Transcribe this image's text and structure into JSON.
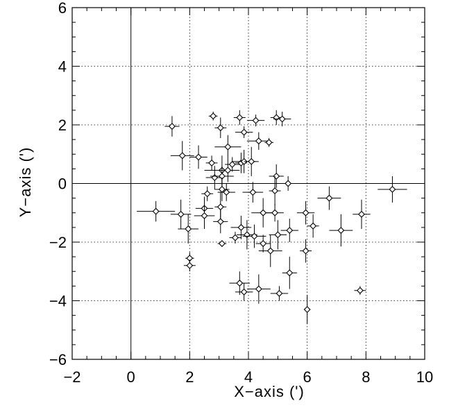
{
  "chart_data": {
    "type": "scatter",
    "title": "",
    "xlabel": "X−axis (')",
    "ylabel": "Y−axis (')",
    "xlim": [
      -2,
      10
    ],
    "ylim": [
      -6,
      6
    ],
    "xticks": [
      -2,
      0,
      2,
      4,
      6,
      8,
      10
    ],
    "yticks": [
      -6,
      -4,
      -2,
      0,
      2,
      4,
      6
    ],
    "xtick_labels": [
      "−2",
      "0",
      "2",
      "4",
      "6",
      "8",
      "10"
    ],
    "ytick_labels": [
      "−6",
      "−4",
      "−2",
      "0",
      "2",
      "4",
      "6"
    ],
    "grid": "dotted",
    "zero_lines": true,
    "marker": "diamond",
    "points": [
      {
        "x": 2.8,
        "y": 2.3,
        "xerr": 0.15,
        "yerr": 0.15
      },
      {
        "x": 3.7,
        "y": 2.25,
        "xerr": 0.2,
        "yerr": 0.25
      },
      {
        "x": 4.25,
        "y": 2.15,
        "xerr": 0.3,
        "yerr": 0.2
      },
      {
        "x": 4.95,
        "y": 2.25,
        "xerr": 0.2,
        "yerr": 0.25
      },
      {
        "x": 5.15,
        "y": 2.2,
        "xerr": 0.3,
        "yerr": 0.25
      },
      {
        "x": 1.4,
        "y": 1.95,
        "xerr": 0.25,
        "yerr": 0.35
      },
      {
        "x": 3.05,
        "y": 1.9,
        "xerr": 0.2,
        "yerr": 0.35
      },
      {
        "x": 3.85,
        "y": 1.75,
        "xerr": 0.3,
        "yerr": 0.2
      },
      {
        "x": 4.35,
        "y": 1.45,
        "xerr": 0.4,
        "yerr": 0.3
      },
      {
        "x": 4.7,
        "y": 1.4,
        "xerr": 0.15,
        "yerr": 0.15
      },
      {
        "x": 3.3,
        "y": 1.25,
        "xerr": 0.45,
        "yerr": 0.4
      },
      {
        "x": 1.75,
        "y": 0.95,
        "xerr": 0.4,
        "yerr": 0.5
      },
      {
        "x": 2.3,
        "y": 0.9,
        "xerr": 0.3,
        "yerr": 0.4
      },
      {
        "x": 2.75,
        "y": 0.7,
        "xerr": 0.2,
        "yerr": 0.25
      },
      {
        "x": 3.1,
        "y": 0.45,
        "xerr": 0.6,
        "yerr": 0.5
      },
      {
        "x": 3.3,
        "y": 0.45,
        "xerr": 0.35,
        "yerr": 0.4
      },
      {
        "x": 3.45,
        "y": 0.65,
        "xerr": 0.25,
        "yerr": 0.25
      },
      {
        "x": 3.75,
        "y": 0.7,
        "xerr": 0.2,
        "yerr": 0.35
      },
      {
        "x": 3.85,
        "y": 0.75,
        "xerr": 0.4,
        "yerr": 0.4
      },
      {
        "x": 4.1,
        "y": 0.75,
        "xerr": 0.25,
        "yerr": 0.5
      },
      {
        "x": 2.85,
        "y": 0.2,
        "xerr": 0.3,
        "yerr": 0.4
      },
      {
        "x": 3.1,
        "y": 0.25,
        "xerr": 0.4,
        "yerr": 0.35
      },
      {
        "x": 4.95,
        "y": 0.25,
        "xerr": 0.25,
        "yerr": 0.4
      },
      {
        "x": 5.35,
        "y": 0.0,
        "xerr": 0.15,
        "yerr": 0.25
      },
      {
        "x": 2.6,
        "y": -0.35,
        "xerr": 0.2,
        "yerr": 0.25
      },
      {
        "x": 3.1,
        "y": -0.2,
        "xerr": 0.25,
        "yerr": 0.4
      },
      {
        "x": 3.25,
        "y": -0.3,
        "xerr": 0.3,
        "yerr": 0.3
      },
      {
        "x": 4.15,
        "y": -0.3,
        "xerr": 0.35,
        "yerr": 0.35
      },
      {
        "x": 4.9,
        "y": -0.25,
        "xerr": 0.2,
        "yerr": 0.5
      },
      {
        "x": 0.85,
        "y": -0.95,
        "xerr": 0.65,
        "yerr": 0.35
      },
      {
        "x": 1.7,
        "y": -1.05,
        "xerr": 0.35,
        "yerr": 0.5
      },
      {
        "x": 2.5,
        "y": -0.85,
        "xerr": 0.3,
        "yerr": 0.4
      },
      {
        "x": 2.5,
        "y": -1.1,
        "xerr": 0.35,
        "yerr": 0.45
      },
      {
        "x": 3.05,
        "y": -0.8,
        "xerr": 0.2,
        "yerr": 0.5
      },
      {
        "x": 3.05,
        "y": -1.3,
        "xerr": 0.25,
        "yerr": 0.4
      },
      {
        "x": 4.5,
        "y": -1.0,
        "xerr": 0.4,
        "yerr": 0.5
      },
      {
        "x": 4.9,
        "y": -1.0,
        "xerr": 0.3,
        "yerr": 0.3
      },
      {
        "x": 5.95,
        "y": -1.0,
        "xerr": 0.3,
        "yerr": 0.4
      },
      {
        "x": 6.75,
        "y": -0.5,
        "xerr": 0.4,
        "yerr": 0.4
      },
      {
        "x": 7.85,
        "y": -1.05,
        "xerr": 0.3,
        "yerr": 0.5
      },
      {
        "x": 8.9,
        "y": -0.2,
        "xerr": 0.5,
        "yerr": 0.45
      },
      {
        "x": 1.95,
        "y": -1.55,
        "xerr": 0.35,
        "yerr": 0.5
      },
      {
        "x": 3.75,
        "y": -1.5,
        "xerr": 0.35,
        "yerr": 0.4
      },
      {
        "x": 3.55,
        "y": -1.85,
        "xerr": 0.2,
        "yerr": 0.2
      },
      {
        "x": 3.95,
        "y": -1.75,
        "xerr": 0.35,
        "yerr": 0.5
      },
      {
        "x": 4.2,
        "y": -1.8,
        "xerr": 0.4,
        "yerr": 0.4
      },
      {
        "x": 5.0,
        "y": -1.75,
        "xerr": 0.3,
        "yerr": 0.5
      },
      {
        "x": 5.4,
        "y": -1.6,
        "xerr": 0.3,
        "yerr": 0.4
      },
      {
        "x": 6.2,
        "y": -1.45,
        "xerr": 0.2,
        "yerr": 0.4
      },
      {
        "x": 7.15,
        "y": -1.6,
        "xerr": 0.4,
        "yerr": 0.55
      },
      {
        "x": 3.1,
        "y": -2.05,
        "xerr": 0.15,
        "yerr": 0.1
      },
      {
        "x": 4.5,
        "y": -2.05,
        "xerr": 0.25,
        "yerr": 0.3
      },
      {
        "x": 4.75,
        "y": -2.3,
        "xerr": 0.4,
        "yerr": 0.55
      },
      {
        "x": 5.95,
        "y": -2.3,
        "xerr": 0.2,
        "yerr": 0.4
      },
      {
        "x": 2.0,
        "y": -2.55,
        "xerr": 0.15,
        "yerr": 0.2
      },
      {
        "x": 2.0,
        "y": -2.8,
        "xerr": 0.2,
        "yerr": 0.2
      },
      {
        "x": 5.4,
        "y": -3.05,
        "xerr": 0.25,
        "yerr": 0.55
      },
      {
        "x": 3.7,
        "y": -3.4,
        "xerr": 0.35,
        "yerr": 0.4
      },
      {
        "x": 4.35,
        "y": -3.6,
        "xerr": 0.4,
        "yerr": 0.5
      },
      {
        "x": 3.85,
        "y": -3.7,
        "xerr": 0.3,
        "yerr": 0.3
      },
      {
        "x": 5.05,
        "y": -3.75,
        "xerr": 0.3,
        "yerr": 0.25
      },
      {
        "x": 7.8,
        "y": -3.65,
        "xerr": 0.2,
        "yerr": 0.15
      },
      {
        "x": 6.0,
        "y": -4.3,
        "xerr": 0.05,
        "yerr": 0.5
      }
    ]
  }
}
